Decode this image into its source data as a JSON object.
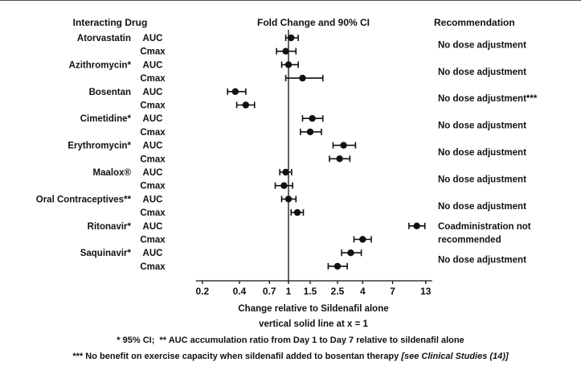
{
  "chart_data": {
    "type": "forest",
    "x_scale": "log",
    "x_ticks": [
      0.2,
      0.4,
      0.7,
      1,
      1.5,
      2.5,
      4,
      7,
      13
    ],
    "reference_line_x": 1,
    "ci_level": "90% CI",
    "column_headers": {
      "left": "Interacting Drug",
      "center": "Fold Change and 90% CI",
      "right": "Recommendation"
    },
    "xlabel": "Change relative to Sildenafil alone",
    "xlabel_note": "vertical solid line at x = 1",
    "footnote_1": "* 95% CI;  ** AUC accumulation ratio from Day 1 to Day 7 relative to sildenafil alone",
    "footnote_2": "*** No benefit on exercise capacity when sildenafil added to bosentan therapy ",
    "footnote_2_italic": "[see Clinical Studies (14)]",
    "groups": [
      {
        "drug": "Atorvastatin",
        "recommendation": [
          "No dose adjustment"
        ],
        "rows": [
          {
            "metric": "AUC",
            "estimate": 1.05,
            "ci_low": 0.95,
            "ci_high": 1.2
          },
          {
            "metric": "Cmax",
            "estimate": 0.95,
            "ci_low": 0.8,
            "ci_high": 1.15
          }
        ]
      },
      {
        "drug": "Azithromycin*",
        "recommendation": [
          "No dose adjustment"
        ],
        "rows": [
          {
            "metric": "AUC",
            "estimate": 1.0,
            "ci_low": 0.88,
            "ci_high": 1.2
          },
          {
            "metric": "Cmax",
            "estimate": 1.3,
            "ci_low": 0.95,
            "ci_high": 1.9
          }
        ]
      },
      {
        "drug": "Bosentan",
        "recommendation": [
          "No dose adjustment***"
        ],
        "rows": [
          {
            "metric": "AUC",
            "estimate": 0.37,
            "ci_low": 0.32,
            "ci_high": 0.45
          },
          {
            "metric": "Cmax",
            "estimate": 0.45,
            "ci_low": 0.38,
            "ci_high": 0.53
          }
        ]
      },
      {
        "drug": "Cimetidine*",
        "recommendation": [
          "No dose adjustment"
        ],
        "rows": [
          {
            "metric": "AUC",
            "estimate": 1.56,
            "ci_low": 1.3,
            "ci_high": 1.9
          },
          {
            "metric": "Cmax",
            "estimate": 1.5,
            "ci_low": 1.25,
            "ci_high": 1.85
          }
        ]
      },
      {
        "drug": "Erythromycin*",
        "recommendation": [
          "No dose adjustment"
        ],
        "rows": [
          {
            "metric": "AUC",
            "estimate": 2.8,
            "ci_low": 2.3,
            "ci_high": 3.5
          },
          {
            "metric": "Cmax",
            "estimate": 2.6,
            "ci_low": 2.15,
            "ci_high": 3.15
          }
        ]
      },
      {
        "drug": "Maalox®",
        "recommendation": [
          "No dose adjustment"
        ],
        "rows": [
          {
            "metric": "AUC",
            "estimate": 0.95,
            "ci_low": 0.85,
            "ci_high": 1.06
          },
          {
            "metric": "Cmax",
            "estimate": 0.92,
            "ci_low": 0.78,
            "ci_high": 1.08
          }
        ]
      },
      {
        "drug": "Oral Contraceptives**",
        "recommendation": [
          "No dose adjustment"
        ],
        "rows": [
          {
            "metric": "AUC",
            "estimate": 1.0,
            "ci_low": 0.88,
            "ci_high": 1.15
          },
          {
            "metric": "Cmax",
            "estimate": 1.18,
            "ci_low": 1.05,
            "ci_high": 1.32
          }
        ]
      },
      {
        "drug": "Ritonavir*",
        "recommendation": [
          "Coadministration not",
          "recommended"
        ],
        "rows": [
          {
            "metric": "AUC",
            "estimate": 11.0,
            "ci_low": 9.5,
            "ci_high": 12.8
          },
          {
            "metric": "Cmax",
            "estimate": 4.0,
            "ci_low": 3.4,
            "ci_high": 4.7
          }
        ]
      },
      {
        "drug": "Saquinavir*",
        "recommendation": [
          "No dose adjustment"
        ],
        "rows": [
          {
            "metric": "AUC",
            "estimate": 3.2,
            "ci_low": 2.7,
            "ci_high": 3.9
          },
          {
            "metric": "Cmax",
            "estimate": 2.5,
            "ci_low": 2.1,
            "ci_high": 3.0
          }
        ]
      }
    ]
  }
}
